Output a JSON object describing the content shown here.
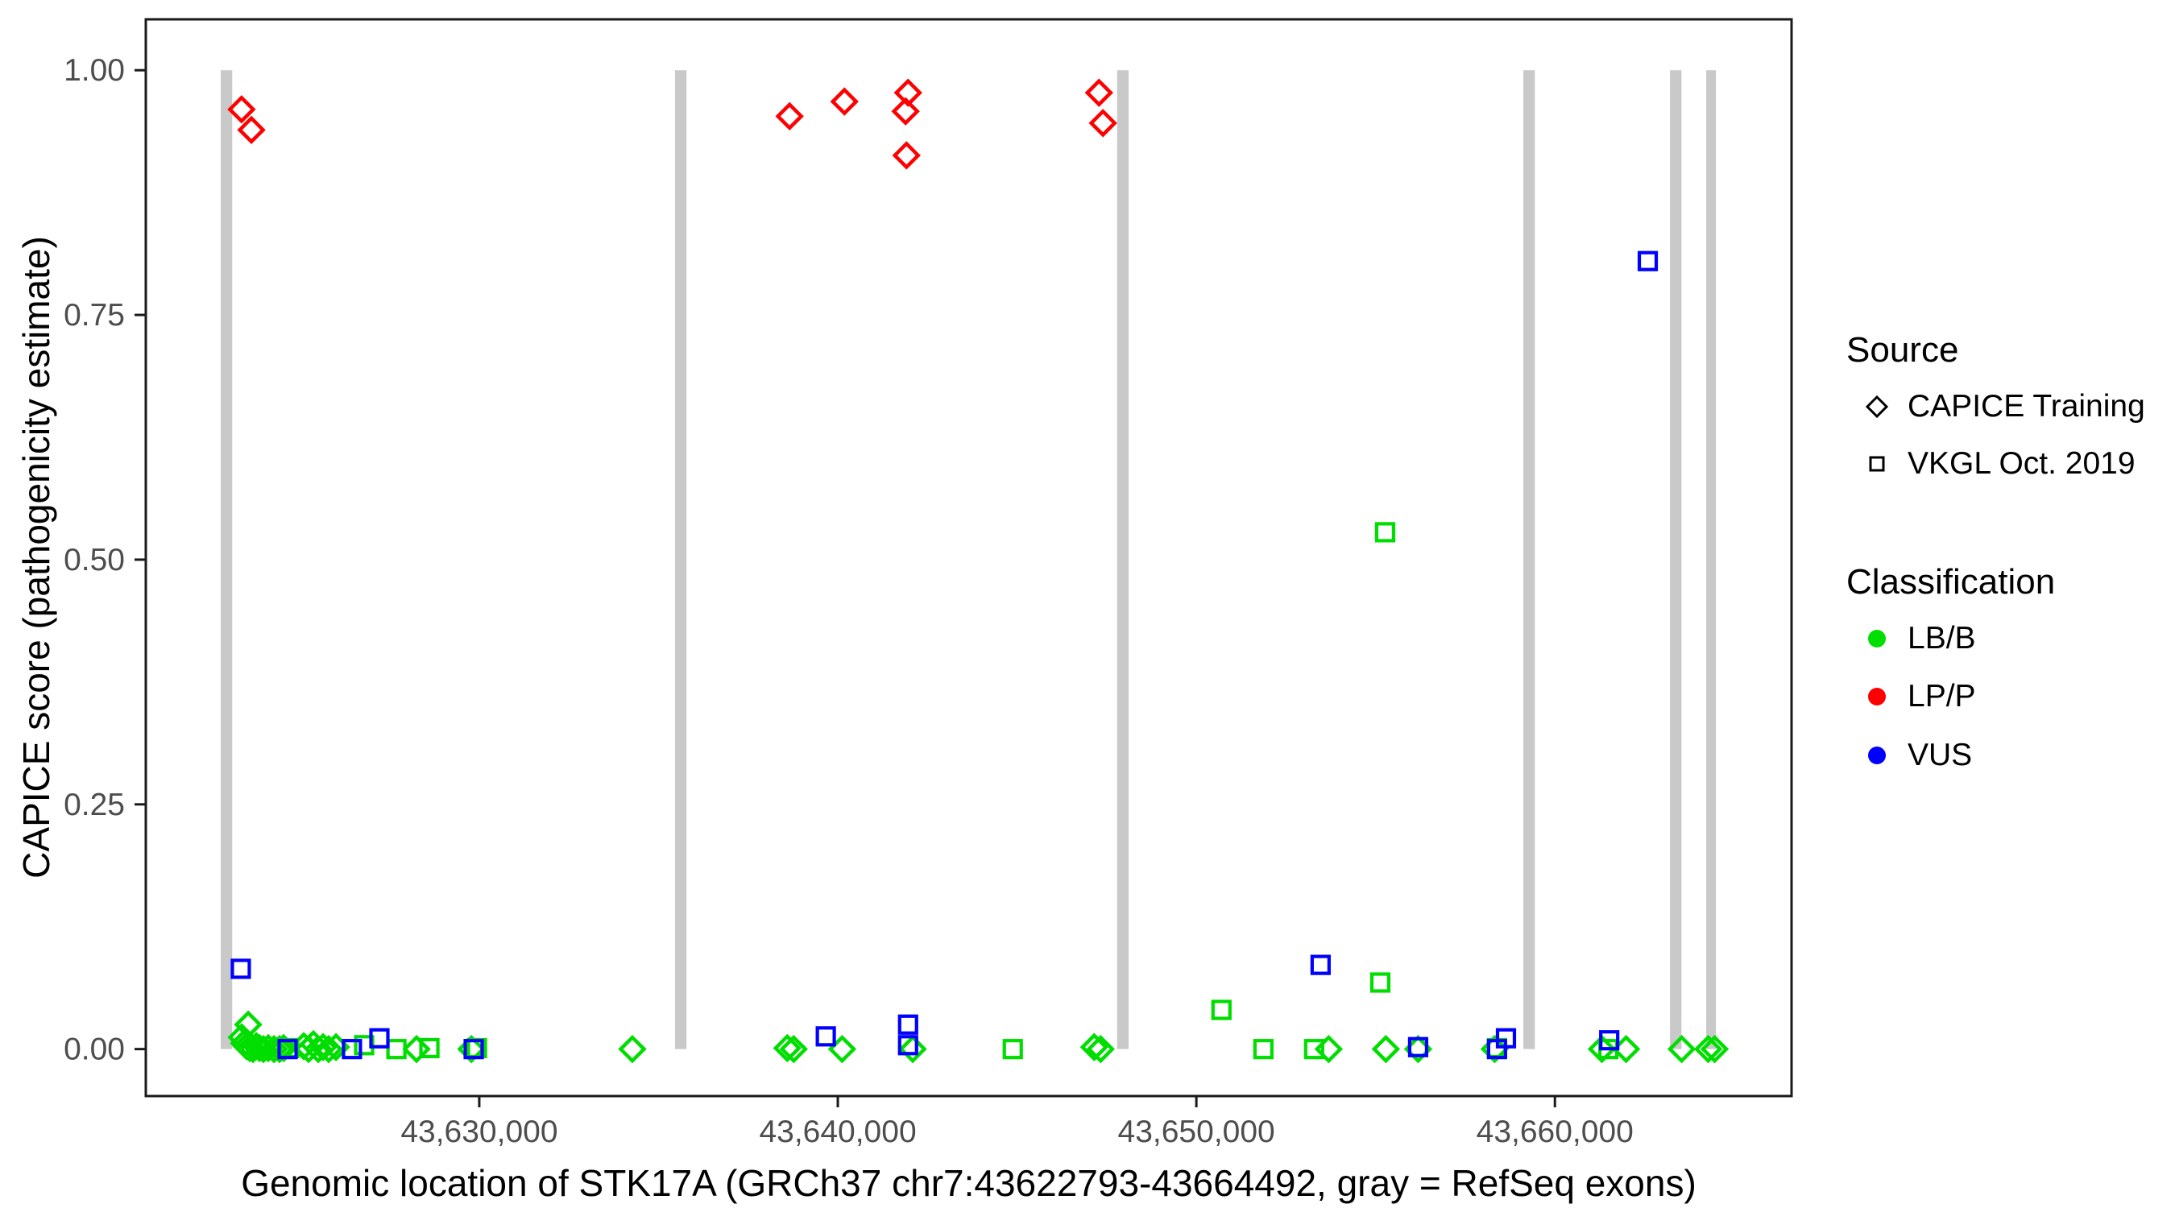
{
  "chart_data": {
    "type": "scatter",
    "title": "",
    "xlabel": "Genomic location of STK17A (GRCh37 chr7:43622793-43664492, gray = RefSeq exons)",
    "ylabel": "CAPICE score (pathogenicity estimate)",
    "xlim": [
      43620700,
      43666600
    ],
    "ylim": [
      -0.048,
      1.052
    ],
    "grid": false,
    "legend_position": "right",
    "x_ticks": [
      {
        "value": 43630000,
        "label": "43,630,000"
      },
      {
        "value": 43640000,
        "label": "43,640,000"
      },
      {
        "value": 43650000,
        "label": "43,650,000"
      },
      {
        "value": 43660000,
        "label": "43,660,000"
      }
    ],
    "y_ticks": [
      {
        "value": 0.0,
        "label": "0.00"
      },
      {
        "value": 0.25,
        "label": "0.25"
      },
      {
        "value": 0.5,
        "label": "0.50"
      },
      {
        "value": 0.75,
        "label": "0.75"
      },
      {
        "value": 1.0,
        "label": "1.00"
      }
    ],
    "exons_note": "gray vertical bars = RefSeq exons, drawn spanning CAPICE score 0 to 1",
    "exons": [
      {
        "start": 43622790,
        "end": 43623110
      },
      {
        "start": 43635460,
        "end": 43635780
      },
      {
        "start": 43647790,
        "end": 43648110
      },
      {
        "start": 43659120,
        "end": 43659440
      },
      {
        "start": 43663210,
        "end": 43663530
      },
      {
        "start": 43664220,
        "end": 43664490
      }
    ],
    "points_format": "[genomic_position, capice_score]",
    "series": [
      {
        "name": "CAPICE Training — LP/P",
        "source": "CAPICE Training",
        "classification": "LP/P",
        "marker": "diamond",
        "points": [
          [
            43623370,
            0.96
          ],
          [
            43623645,
            0.939
          ],
          [
            43638655,
            0.953
          ],
          [
            43640185,
            0.968
          ],
          [
            43641960,
            0.977
          ],
          [
            43641890,
            0.958
          ],
          [
            43641915,
            0.913
          ],
          [
            43647285,
            0.977
          ],
          [
            43647395,
            0.946
          ]
        ]
      },
      {
        "name": "CAPICE Training — LB/B",
        "source": "CAPICE Training",
        "classification": "LB/B",
        "marker": "diamond",
        "points": [
          [
            43623555,
            0.025
          ],
          [
            43623375,
            0.012
          ],
          [
            43623440,
            0.006
          ],
          [
            43623510,
            0.003
          ],
          [
            43623600,
            0.001
          ],
          [
            43623690,
            0.0
          ],
          [
            43623780,
            0.003
          ],
          [
            43623870,
            0.001
          ],
          [
            43623980,
            0.0
          ],
          [
            43624115,
            0.001
          ],
          [
            43624275,
            0.0
          ],
          [
            43624430,
            0.0
          ],
          [
            43624545,
            0.001
          ],
          [
            43625105,
            0.003
          ],
          [
            43625240,
            0.0
          ],
          [
            43625375,
            0.005
          ],
          [
            43625510,
            0.0
          ],
          [
            43625645,
            0.002
          ],
          [
            43625800,
            0.0
          ],
          [
            43626005,
            0.002
          ],
          [
            43628250,
            0.0
          ],
          [
            43629780,
            0.0
          ],
          [
            43634270,
            0.0
          ],
          [
            43638590,
            0.001
          ],
          [
            43638770,
            0.0
          ],
          [
            43640120,
            0.0
          ],
          [
            43642090,
            0.0
          ],
          [
            43647150,
            0.002
          ],
          [
            43647330,
            0.0
          ],
          [
            43653690,
            0.0
          ],
          [
            43655285,
            0.0
          ],
          [
            43656185,
            0.0
          ],
          [
            43658320,
            0.0
          ],
          [
            43661310,
            0.0
          ],
          [
            43661985,
            0.0
          ],
          [
            43663535,
            0.0
          ],
          [
            43664275,
            0.0
          ],
          [
            43664455,
            0.0
          ]
        ]
      },
      {
        "name": "VKGL Oct. 2019 — LB/B",
        "source": "VKGL Oct. 2019",
        "classification": "LB/B",
        "marker": "square",
        "points": [
          [
            43624700,
            0.001
          ],
          [
            43626790,
            0.004
          ],
          [
            43627690,
            0.0
          ],
          [
            43628610,
            0.001
          ],
          [
            43629935,
            0.001
          ],
          [
            43644880,
            0.0
          ],
          [
            43650700,
            0.04
          ],
          [
            43651870,
            0.0
          ],
          [
            43653285,
            0.0
          ],
          [
            43655130,
            0.068
          ],
          [
            43655265,
            0.528
          ],
          [
            43658385,
            0.001
          ],
          [
            43661490,
            0.0
          ]
        ]
      },
      {
        "name": "VKGL Oct. 2019 — VUS",
        "source": "VKGL Oct. 2019",
        "classification": "VUS",
        "marker": "square",
        "points": [
          [
            43623350,
            0.082
          ],
          [
            43624655,
            0.0
          ],
          [
            43626450,
            0.0
          ],
          [
            43627215,
            0.011
          ],
          [
            43629845,
            0.0
          ],
          [
            43639665,
            0.013
          ],
          [
            43641960,
            0.025
          ],
          [
            43641960,
            0.004
          ],
          [
            43653465,
            0.086
          ],
          [
            43656185,
            0.002
          ],
          [
            43658385,
            0.0
          ],
          [
            43658635,
            0.011
          ],
          [
            43661515,
            0.009
          ],
          [
            43662590,
            0.805
          ]
        ]
      }
    ]
  },
  "colors": {
    "LB/B": "#00DE00",
    "LP/P": "#FF0000",
    "VUS": "#0000FF",
    "exon": "#C9C9C9",
    "axis": "#1A1A1A",
    "tick_label": "#4D4D4D"
  },
  "legend": {
    "source": {
      "title": "Source",
      "items": [
        {
          "label": "CAPICE Training",
          "marker": "diamond"
        },
        {
          "label": "VKGL Oct. 2019",
          "marker": "square"
        }
      ]
    },
    "classification": {
      "title": "Classification",
      "items": [
        {
          "label": "LB/B",
          "color": "#00DE00"
        },
        {
          "label": "LP/P",
          "color": "#FF0000"
        },
        {
          "label": "VUS",
          "color": "#0000FF"
        }
      ]
    }
  }
}
